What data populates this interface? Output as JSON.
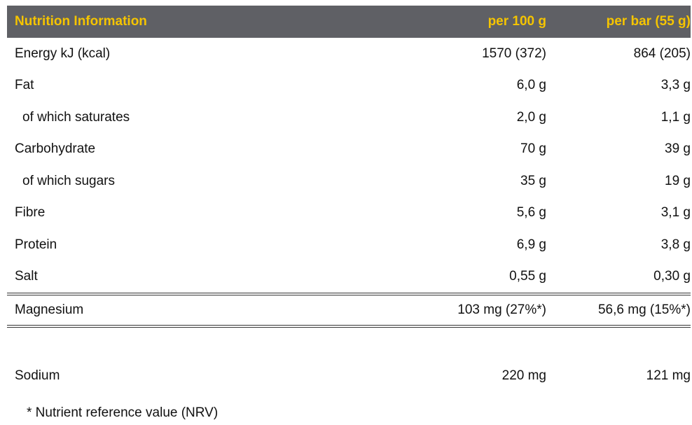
{
  "colors": {
    "header_bg": "#5f6065",
    "header_text": "#f5c400",
    "body_text": "#111111"
  },
  "header": {
    "title": "Nutrition Information",
    "col_100g": "per 100 g",
    "col_bar": "per bar (55 g)"
  },
  "rows": [
    {
      "label": "Energy kJ (kcal)",
      "per100": "1570 (372)",
      "perbar": "864 (205)"
    },
    {
      "label": "Fat",
      "per100": "6,0 g",
      "perbar": "3,3 g"
    },
    {
      "label": "of which saturates",
      "per100": "2,0 g",
      "perbar": "1,1 g"
    },
    {
      "label": "Carbohydrate",
      "per100": "70 g",
      "perbar": "39 g"
    },
    {
      "label": "of which sugars",
      "per100": "35 g",
      "perbar": "19 g"
    },
    {
      "label": "Fibre",
      "per100": "5,6 g",
      "perbar": "3,1 g"
    },
    {
      "label": "Protein",
      "per100": "6,9 g",
      "perbar": "3,8 g"
    },
    {
      "label": "Salt",
      "per100": "0,55 g",
      "perbar": "0,30 g"
    }
  ],
  "magnesium": {
    "label": "Magnesium",
    "per100": "103 mg (27%*)",
    "perbar": "56,6 mg (15%*)"
  },
  "sodium": {
    "label": "Sodium",
    "per100": "220 mg",
    "perbar": "121 mg"
  },
  "footnote": "* Nutrient reference value (NRV)"
}
